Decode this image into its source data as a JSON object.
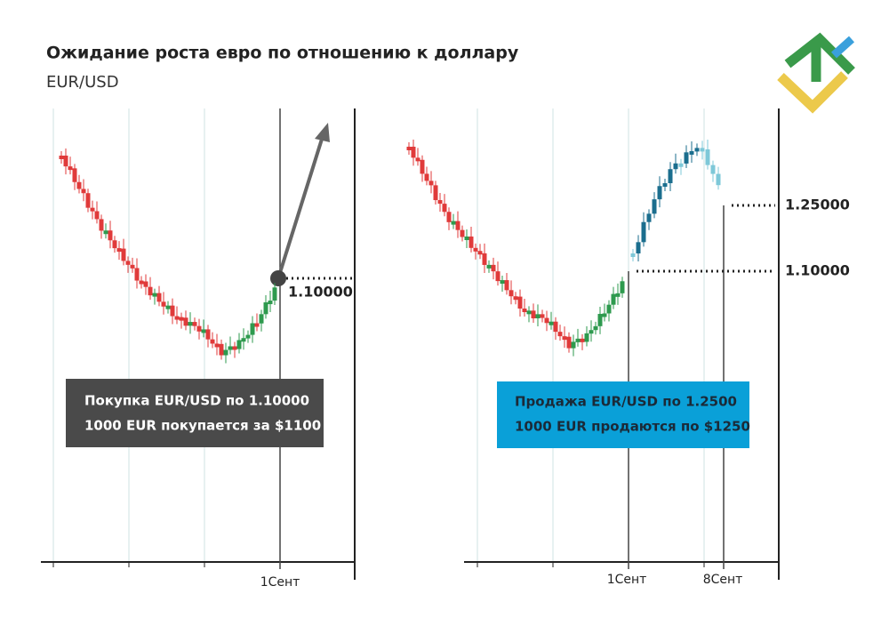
{
  "header": {
    "title": "Ожидание роста евро по отношению к доллару",
    "subtitle": "EUR/USD"
  },
  "panels": [
    {
      "price_labels": [
        "1.10000"
      ],
      "x_labels": [
        "1Сент"
      ],
      "box": {
        "lines": [
          "Покупка EUR/USD по 1.10000",
          "1000 EUR покупается за $1100"
        ]
      }
    },
    {
      "price_labels": [
        "1.25000",
        "1.10000"
      ],
      "x_labels": [
        "1Сент",
        "8Сент"
      ],
      "box": {
        "lines": [
          "Продажа EUR/USD по 1.2500",
          "1000 EUR продаются по $1250"
        ]
      }
    }
  ]
}
